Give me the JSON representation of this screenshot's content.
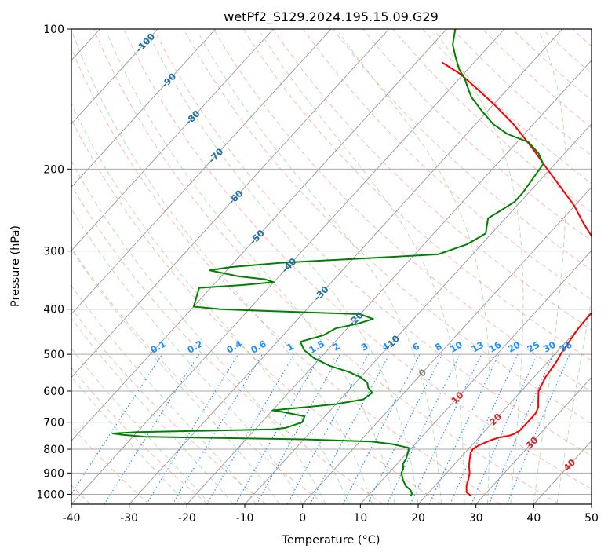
{
  "chart_data": {
    "type": "line",
    "chart_kind": "skew-T log-P diagram",
    "title": "wetPf2_S129.2024.195.15.09.G29",
    "xlabel": "Temperature (°C)",
    "ylabel": "Pressure (hPa)",
    "xlim": [
      -40,
      50
    ],
    "ylim": [
      1050,
      100
    ],
    "y_scale": "log",
    "x_ticks": [
      -40,
      -30,
      -20,
      -10,
      0,
      10,
      20,
      30,
      40,
      50
    ],
    "y_ticks": [
      100,
      200,
      300,
      400,
      500,
      600,
      700,
      800,
      900,
      1000
    ],
    "grid": true,
    "colors": {
      "temperature": "#ff0000",
      "dewpoint": "#008000",
      "isotherm": "#999999",
      "isobar": "#aaaaaa",
      "dry_adiabat": "#fa8072",
      "moist_adiabat": "#7bc47b",
      "mixing_ratio": "#1e90ff",
      "isotherm_label_neg": "#1f6fa8",
      "isotherm_label_zero": "#808080",
      "isotherm_label_pos": "#d62728"
    },
    "isotherm_labels": [
      {
        "t": -100,
        "p": 107,
        "text": "-100"
      },
      {
        "t": -90,
        "p": 129,
        "text": "-90"
      },
      {
        "t": -80,
        "p": 155,
        "text": "-80"
      },
      {
        "t": -70,
        "p": 187,
        "text": "-70"
      },
      {
        "t": -60,
        "p": 230,
        "text": "-60"
      },
      {
        "t": -50,
        "p": 280,
        "text": "-50"
      },
      {
        "t": -40,
        "p": 322,
        "text": "-40"
      },
      {
        "t": -30,
        "p": 370,
        "text": "-30"
      },
      {
        "t": -20,
        "p": 420,
        "text": "-20"
      },
      {
        "t": -10,
        "p": 472,
        "text": "-10"
      },
      {
        "t": 0,
        "p": 548,
        "text": "0"
      },
      {
        "t": 10,
        "p": 620,
        "text": "10"
      },
      {
        "t": 20,
        "p": 690,
        "text": "20"
      },
      {
        "t": 30,
        "p": 775,
        "text": "30"
      },
      {
        "t": 40,
        "p": 865,
        "text": "40"
      }
    ],
    "mixing_ratio_values": [
      0.1,
      0.2,
      0.4,
      0.6,
      1,
      1.5,
      2,
      3,
      4,
      6,
      8,
      10,
      13,
      16,
      20,
      25,
      30,
      36
    ],
    "mixing_ratio_labels": [
      "0.1",
      "0.2",
      "0.4",
      "0.6",
      "1",
      "1.5",
      "2",
      "3",
      "4",
      "6",
      "8",
      "10",
      "13",
      "16",
      "20",
      "25",
      "30",
      "36"
    ],
    "series": [
      {
        "key": "temperature",
        "points": [
          [
            1010,
            28.0
          ],
          [
            990,
            26.5
          ],
          [
            960,
            25.5
          ],
          [
            930,
            24.8
          ],
          [
            900,
            24.0
          ],
          [
            870,
            22.8
          ],
          [
            840,
            21.8
          ],
          [
            815,
            21.0
          ],
          [
            800,
            20.8
          ],
          [
            785,
            21.2
          ],
          [
            775,
            21.8
          ],
          [
            765,
            22.5
          ],
          [
            755,
            23.5
          ],
          [
            748,
            25.0
          ],
          [
            742,
            25.5
          ],
          [
            730,
            26.0
          ],
          [
            700,
            26.0
          ],
          [
            670,
            26.0
          ],
          [
            650,
            25.5
          ],
          [
            630,
            24.5
          ],
          [
            600,
            23.0
          ],
          [
            560,
            22.0
          ],
          [
            520,
            21.5
          ],
          [
            500,
            21.0
          ],
          [
            470,
            20.5
          ],
          [
            440,
            20.0
          ],
          [
            410,
            19.8
          ],
          [
            390,
            20.0
          ],
          [
            380,
            20.0
          ],
          [
            370,
            19.5
          ],
          [
            355,
            18.5
          ],
          [
            340,
            17.0
          ],
          [
            320,
            14.8
          ],
          [
            300,
            11.5
          ],
          [
            280,
            8.0
          ],
          [
            260,
            4.0
          ],
          [
            240,
            0.0
          ],
          [
            220,
            -5.0
          ],
          [
            200,
            -10.5
          ],
          [
            180,
            -16.5
          ],
          [
            160,
            -23.5
          ],
          [
            145,
            -30.0
          ],
          [
            135,
            -35.0
          ],
          [
            125,
            -40.5
          ],
          [
            118,
            -45.5
          ]
        ]
      },
      {
        "key": "dewpoint",
        "points": [
          [
            1010,
            17.5
          ],
          [
            995,
            17.2
          ],
          [
            980,
            16.5
          ],
          [
            960,
            15.0
          ],
          [
            930,
            13.5
          ],
          [
            900,
            12.2
          ],
          [
            880,
            11.8
          ],
          [
            860,
            11.0
          ],
          [
            840,
            10.8
          ],
          [
            810,
            10.0
          ],
          [
            795,
            9.5
          ],
          [
            780,
            6.0
          ],
          [
            770,
            2.0
          ],
          [
            762,
            -10.0
          ],
          [
            757,
            -25.0
          ],
          [
            752,
            -38.0
          ],
          [
            745,
            -42.0
          ],
          [
            740,
            -44.0
          ],
          [
            735,
            -40.0
          ],
          [
            730,
            -28.0
          ],
          [
            725,
            -17.0
          ],
          [
            720,
            -15.0
          ],
          [
            700,
            -13.0
          ],
          [
            680,
            -13.5
          ],
          [
            665,
            -18.0
          ],
          [
            660,
            -20.0
          ],
          [
            650,
            -15.0
          ],
          [
            640,
            -10.0
          ],
          [
            625,
            -6.0
          ],
          [
            605,
            -5.5
          ],
          [
            590,
            -7.0
          ],
          [
            575,
            -8.0
          ],
          [
            560,
            -10.0
          ],
          [
            545,
            -13.0
          ],
          [
            530,
            -17.0
          ],
          [
            510,
            -21.0
          ],
          [
            490,
            -24.0
          ],
          [
            470,
            -26.0
          ],
          [
            455,
            -23.0
          ],
          [
            440,
            -22.0
          ],
          [
            430,
            -19.0
          ],
          [
            420,
            -17.0
          ],
          [
            410,
            -20.0
          ],
          [
            403,
            -38.0
          ],
          [
            400,
            -45.0
          ],
          [
            395,
            -50.0
          ],
          [
            360,
            -52.0
          ],
          [
            355,
            -45.0
          ],
          [
            350,
            -40.0
          ],
          [
            345,
            -42.0
          ],
          [
            340,
            -47.0
          ],
          [
            330,
            -53.0
          ],
          [
            325,
            -50.0
          ],
          [
            318,
            -42.0
          ],
          [
            312,
            -30.0
          ],
          [
            305,
            -16.0
          ],
          [
            290,
            -12.5
          ],
          [
            275,
            -11.0
          ],
          [
            265,
            -12.0
          ],
          [
            255,
            -13.0
          ],
          [
            245,
            -12.0
          ],
          [
            235,
            -11.0
          ],
          [
            225,
            -11.0
          ],
          [
            210,
            -11.5
          ],
          [
            195,
            -12.0
          ],
          [
            185,
            -14.5
          ],
          [
            175,
            -18.0
          ],
          [
            168,
            -23.0
          ],
          [
            160,
            -27.0
          ],
          [
            150,
            -31.0
          ],
          [
            140,
            -35.0
          ],
          [
            134,
            -37.0
          ],
          [
            128,
            -39.0
          ],
          [
            122,
            -41.5
          ],
          [
            115,
            -44.0
          ],
          [
            108,
            -46.5
          ],
          [
            102,
            -48.0
          ],
          [
            100,
            -48.5
          ]
        ]
      }
    ]
  }
}
